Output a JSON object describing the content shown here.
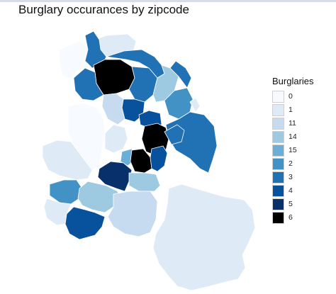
{
  "title": "Burglary occurances by zipcode",
  "legend": {
    "title": "Burglaries",
    "items": [
      {
        "label": "0",
        "color": "#f7fbff"
      },
      {
        "label": "1",
        "color": "#deebf7"
      },
      {
        "label": "11",
        "color": "#c6dbef"
      },
      {
        "label": "14",
        "color": "#9ecae1"
      },
      {
        "label": "15",
        "color": "#6baed6"
      },
      {
        "label": "2",
        "color": "#4292c6"
      },
      {
        "label": "3",
        "color": "#2171b5"
      },
      {
        "label": "4",
        "color": "#08519c"
      },
      {
        "label": "5",
        "color": "#08306b"
      },
      {
        "label": "6",
        "color": "#000000"
      }
    ]
  },
  "regions": [
    {
      "category": "0"
    },
    {
      "category": "1"
    },
    {
      "category": "3"
    },
    {
      "category": "3"
    },
    {
      "category": "6"
    },
    {
      "category": "3"
    },
    {
      "category": "3"
    },
    {
      "category": "14"
    },
    {
      "category": "3"
    },
    {
      "category": "2"
    },
    {
      "category": "1"
    },
    {
      "category": "4"
    },
    {
      "category": "11"
    },
    {
      "category": "4"
    },
    {
      "category": "6"
    },
    {
      "category": "3"
    },
    {
      "category": "0"
    },
    {
      "category": "1"
    },
    {
      "category": "1"
    },
    {
      "category": "15"
    },
    {
      "category": "6"
    },
    {
      "category": "4"
    },
    {
      "category": "5"
    },
    {
      "category": "14"
    },
    {
      "category": "2"
    },
    {
      "category": "14"
    },
    {
      "category": "11"
    },
    {
      "category": "4"
    },
    {
      "category": "1"
    },
    {
      "category": "1"
    },
    {
      "category": "3"
    }
  ]
}
